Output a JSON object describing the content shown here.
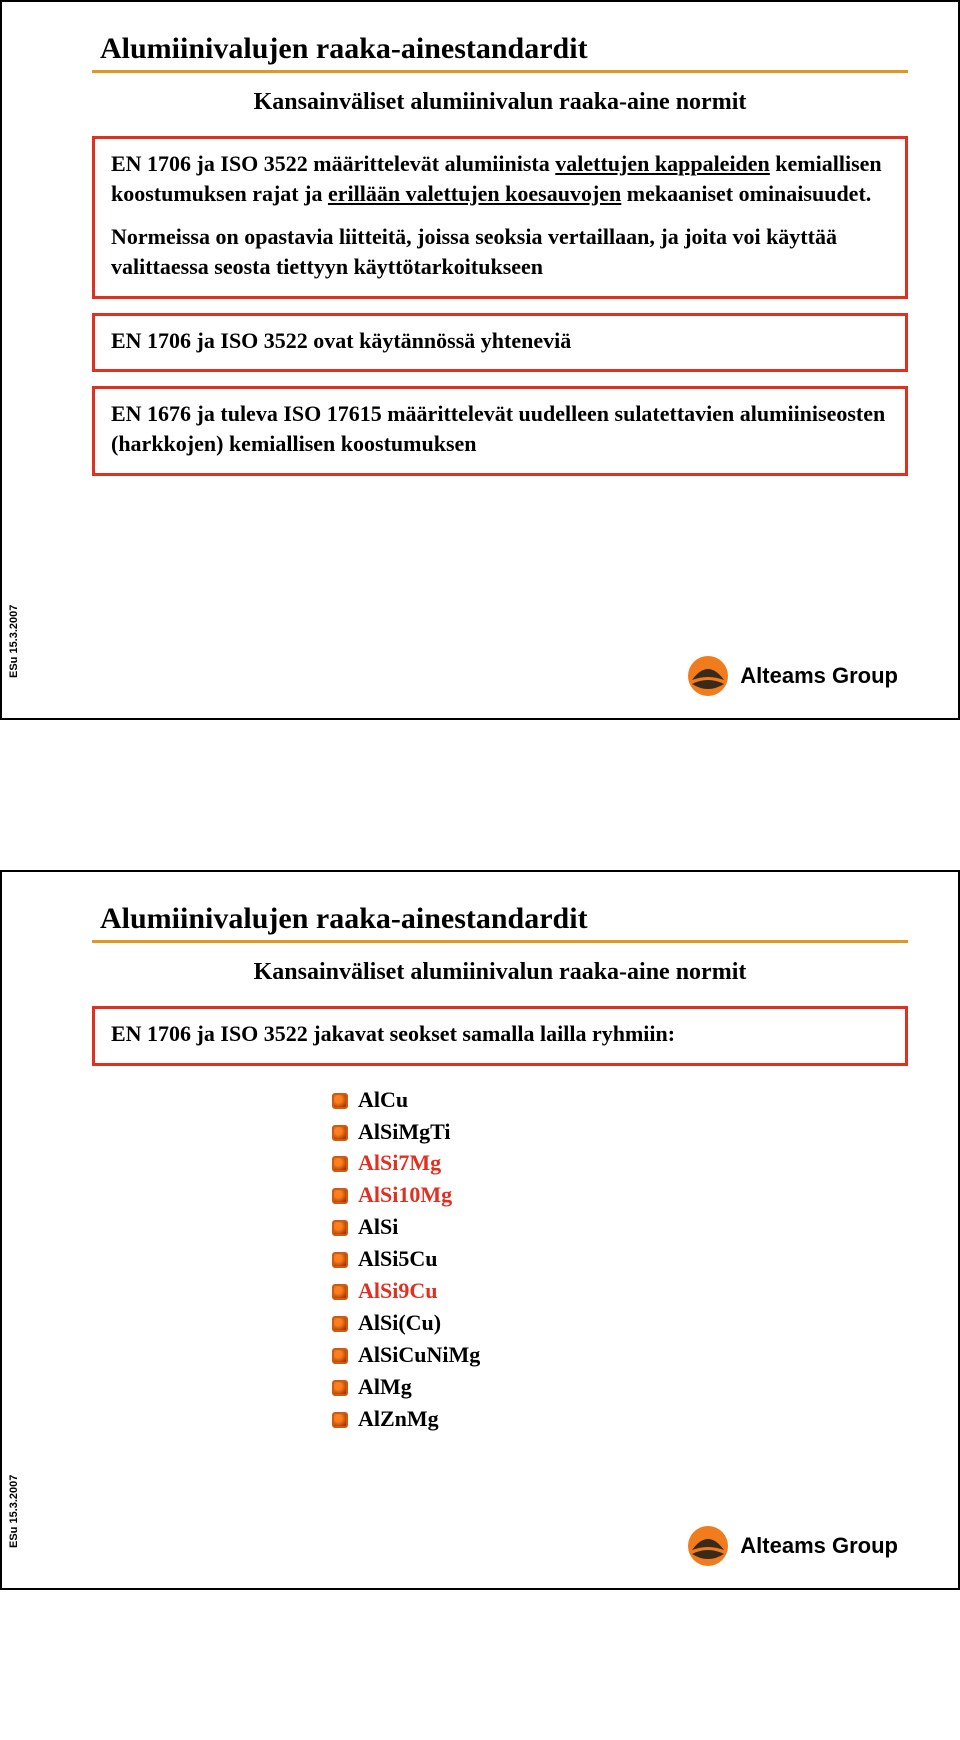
{
  "common": {
    "title": "Alumiinivalujen raaka-ainestandardit",
    "subtitle": "Kansainväliset alumiinivalun raaka-aine normit",
    "footer_sidetext": "ESu 15.3.2007",
    "logo_text": "Alteams Group",
    "colors": {
      "accent_rule": "#e09820",
      "box_border": "#e03020",
      "red_text": "#e03020",
      "bullet_border": "#d05a10",
      "bullet_fill_light": "#ff8020",
      "bullet_fill_dark": "#a03000",
      "logo_orange": "#f07c1e",
      "logo_dark": "#3a2a1a"
    }
  },
  "slide1": {
    "box1": {
      "p1_lead": "EN 1706 ja ISO 3522 määrittelevät alumiinista ",
      "p1_u1": "valettujen kappaleiden",
      "p1_mid": " kemiallisen koostumuksen rajat ja ",
      "p1_u2": "erillään valettujen koesauvojen",
      "p1_tail": " mekaaniset ominaisuudet.",
      "p2": "Normeissa on opastavia liitteitä, joissa seoksia vertaillaan, ja joita voi käyttää valittaessa seosta tiettyyn käyttötarkoitukseen"
    },
    "box2": "EN 1706 ja ISO 3522 ovat käytännössä yhteneviä",
    "box3": "EN 1676 ja tuleva ISO 17615 määrittelevät uudelleen sulatettavien alumiiniseosten (harkkojen) kemiallisen koostumuksen"
  },
  "slide2": {
    "box1": "EN 1706 ja ISO 3522 jakavat seokset samalla lailla ryhmiin:",
    "alloys": [
      {
        "label": "AlCu",
        "red": false
      },
      {
        "label": "AlSiMgTi",
        "red": false
      },
      {
        "label": "AlSi7Mg",
        "red": true
      },
      {
        "label": "AlSi10Mg",
        "red": true
      },
      {
        "label": "AlSi",
        "red": false
      },
      {
        "label": "AlSi5Cu",
        "red": false
      },
      {
        "label": "AlSi9Cu",
        "red": true
      },
      {
        "label": "AlSi(Cu)",
        "red": false
      },
      {
        "label": "AlSiCuNiMg",
        "red": false
      },
      {
        "label": "AlMg",
        "red": false
      },
      {
        "label": "AlZnMg",
        "red": false
      }
    ]
  }
}
